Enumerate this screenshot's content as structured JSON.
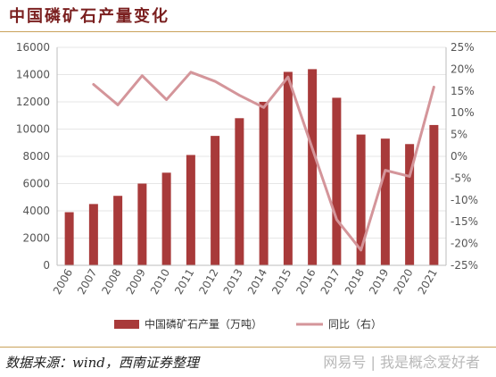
{
  "header": {
    "title": "中国磷矿石产量变化"
  },
  "footer": {
    "source": "数据来源：wind，西南证券整理",
    "watermark": "网易号 | 我是概念爱好者"
  },
  "chart_data": {
    "type": "bar+line",
    "categories": [
      "2006",
      "2007",
      "2008",
      "2009",
      "2010",
      "2011",
      "2012",
      "2013",
      "2014",
      "2015",
      "2016",
      "2017",
      "2018",
      "2019",
      "2020",
      "2021"
    ],
    "series": [
      {
        "name": "中国磷矿石产量（万吨）",
        "type": "bar",
        "axis": "left",
        "color": "#a83a3a",
        "values": [
          3900,
          4500,
          5100,
          6000,
          6800,
          8100,
          9500,
          10800,
          12000,
          14200,
          14400,
          12300,
          9600,
          9300,
          8900,
          10300
        ]
      },
      {
        "name": "同比（右）",
        "type": "line",
        "axis": "right",
        "color": "#d4959a",
        "values": [
          null,
          16.5,
          11.8,
          18.5,
          13.0,
          19.3,
          17.2,
          14.0,
          11.2,
          18.2,
          1.8,
          -14.5,
          -21.5,
          -3.2,
          -4.6,
          15.9
        ]
      }
    ],
    "yleft": {
      "min": 0,
      "max": 16000,
      "ticks": [
        "0",
        "2000",
        "4000",
        "6000",
        "8000",
        "10000",
        "12000",
        "14000",
        "16000"
      ]
    },
    "yright": {
      "min": -25,
      "max": 25,
      "ticks": [
        "-25%",
        "-20%",
        "-15%",
        "-10%",
        "-5%",
        "0%",
        "5%",
        "10%",
        "15%",
        "20%",
        "25%"
      ]
    },
    "legend_position": "bottom"
  }
}
